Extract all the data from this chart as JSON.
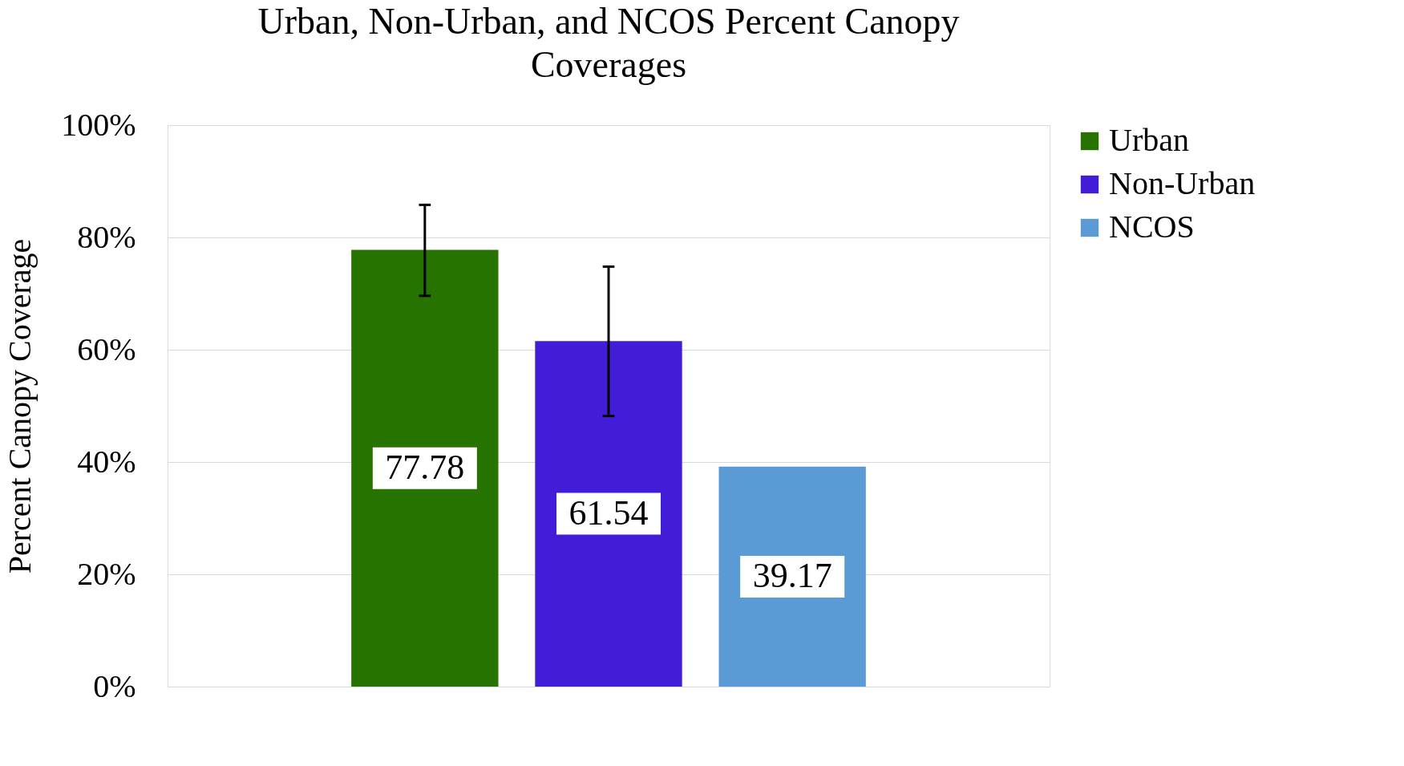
{
  "chart_data": {
    "type": "bar",
    "title": "Urban, Non-Urban, and NCOS Percent Canopy Coverages",
    "ylabel": "Percent Canopy Coverage",
    "categories": [
      null,
      null,
      null
    ],
    "series": [
      {
        "name": "Urban",
        "color": "#267300",
        "values": [
          77.78,
          null,
          null
        ],
        "errors": [
          [
            69.6,
            85.8
          ],
          null,
          null
        ]
      },
      {
        "name": "Non-Urban",
        "color": "#421cd6",
        "values": [
          null,
          61.54,
          null
        ],
        "errors": [
          null,
          [
            48.2,
            74.8
          ],
          null
        ]
      },
      {
        "name": "NCOS",
        "color": "#5b9bd5",
        "values": [
          null,
          null,
          39.17
        ],
        "errors": [
          null,
          null,
          null
        ]
      }
    ],
    "ylim": [
      0,
      100
    ],
    "yticks": [
      {
        "value": 0,
        "label": "0%"
      },
      {
        "value": 20,
        "label": "20%"
      },
      {
        "value": 40,
        "label": "40%"
      },
      {
        "value": 60,
        "label": "60%"
      },
      {
        "value": 80,
        "label": "80%"
      },
      {
        "value": 100,
        "label": "100%"
      }
    ],
    "grid": "y",
    "legend": "right",
    "data_labels": true
  }
}
